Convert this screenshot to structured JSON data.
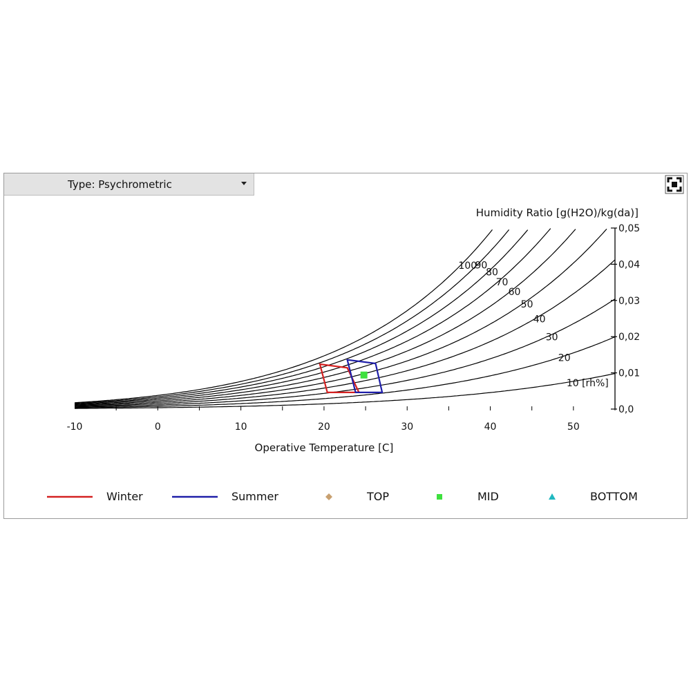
{
  "toolbar": {
    "type_label": "Type: Psychrometric",
    "fullscreen_icon": "fullscreen-icon"
  },
  "chart_data": {
    "type": "line",
    "xlabel": "Operative Temperature [C]",
    "ylabel": "Humidity Ratio [g(H2O)/kg(da)]",
    "xlim": [
      -10,
      55
    ],
    "ylim": [
      0,
      0.05
    ],
    "x_ticks": [
      "-10",
      "0",
      "10",
      "20",
      "30",
      "40",
      "50"
    ],
    "y_ticks": [
      "0,0",
      "0,01",
      "0,02",
      "0,03",
      "0,04",
      "0,05"
    ],
    "rh_curves": [
      10,
      20,
      30,
      40,
      50,
      60,
      70,
      80,
      90,
      100
    ],
    "rh_labels": [
      {
        "rh": 100,
        "text": "100",
        "t": 36.5
      },
      {
        "rh": 90,
        "text": "90",
        "t": 38.5
      },
      {
        "rh": 80,
        "text": "80",
        "t": 39.8
      },
      {
        "rh": 70,
        "text": "70",
        "t": 41.0
      },
      {
        "rh": 60,
        "text": "60",
        "t": 42.5
      },
      {
        "rh": 50,
        "text": "50",
        "t": 44.0
      },
      {
        "rh": 40,
        "text": "40",
        "t": 45.5
      },
      {
        "rh": 30,
        "text": "30",
        "t": 47.0
      },
      {
        "rh": 20,
        "text": "20",
        "t": 48.5
      },
      {
        "rh": 10,
        "text": "10 [rh%]",
        "t": 49.5
      }
    ],
    "zones": [
      {
        "name": "Winter",
        "color": "#d42020",
        "points": [
          [
            19.5,
            0.0124
          ],
          [
            22.8,
            0.0114
          ],
          [
            24.2,
            0.0046
          ],
          [
            20.4,
            0.0046
          ]
        ]
      },
      {
        "name": "Summer",
        "color": "#1e1ea8",
        "points": [
          [
            22.8,
            0.0136
          ],
          [
            26.2,
            0.0126
          ],
          [
            27.0,
            0.0046
          ],
          [
            23.8,
            0.0046
          ]
        ]
      }
    ],
    "points": [
      {
        "name": "MID",
        "color": "#3ee03e",
        "shape": "square",
        "x": 24.8,
        "y": 0.0094
      }
    ],
    "legend": {
      "placement": "bottom",
      "items": [
        {
          "name": "Winter",
          "type": "line",
          "color": "#d42020"
        },
        {
          "name": "Summer",
          "type": "line",
          "color": "#1e1ea8"
        },
        {
          "name": "TOP",
          "type": "diamond",
          "color": "#c8a070"
        },
        {
          "name": "MID",
          "type": "square",
          "color": "#3ee03e"
        },
        {
          "name": "BOTTOM",
          "type": "triangle",
          "color": "#20b8c0"
        }
      ]
    }
  }
}
